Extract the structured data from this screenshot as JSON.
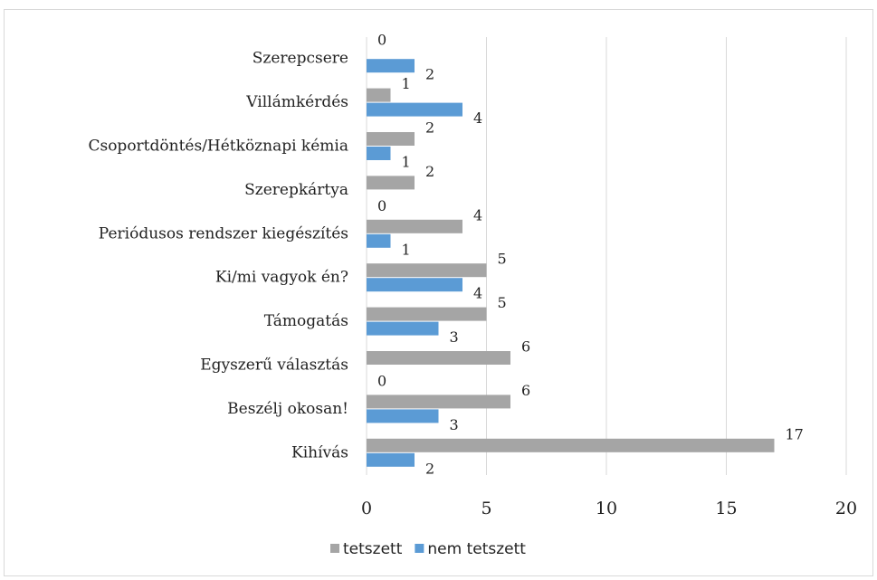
{
  "chart_data": {
    "type": "barh",
    "categories": [
      "Szerepcsere",
      "Villámkérdés",
      "Csoportdöntés/Hétköznapi kémia",
      "Szerepkártya",
      "Periódusos rendszer kiegészítés",
      "Ki/mi vagyok én?",
      "Támogatás",
      "Egyszerű választás",
      "Beszélj okosan!",
      "Kihívás"
    ],
    "series": [
      {
        "name": "tetszett",
        "color": "#a5a5a5",
        "values": [
          0,
          1,
          2,
          2,
          4,
          5,
          5,
          6,
          6,
          17
        ]
      },
      {
        "name": "nem tetszett",
        "color": "#5b9bd5",
        "values": [
          2,
          4,
          1,
          0,
          1,
          4,
          3,
          0,
          3,
          2
        ]
      }
    ],
    "xlim": [
      0,
      20
    ],
    "xticks": [
      0,
      5,
      10,
      15,
      20
    ],
    "grid": true,
    "legend": "bottom"
  }
}
